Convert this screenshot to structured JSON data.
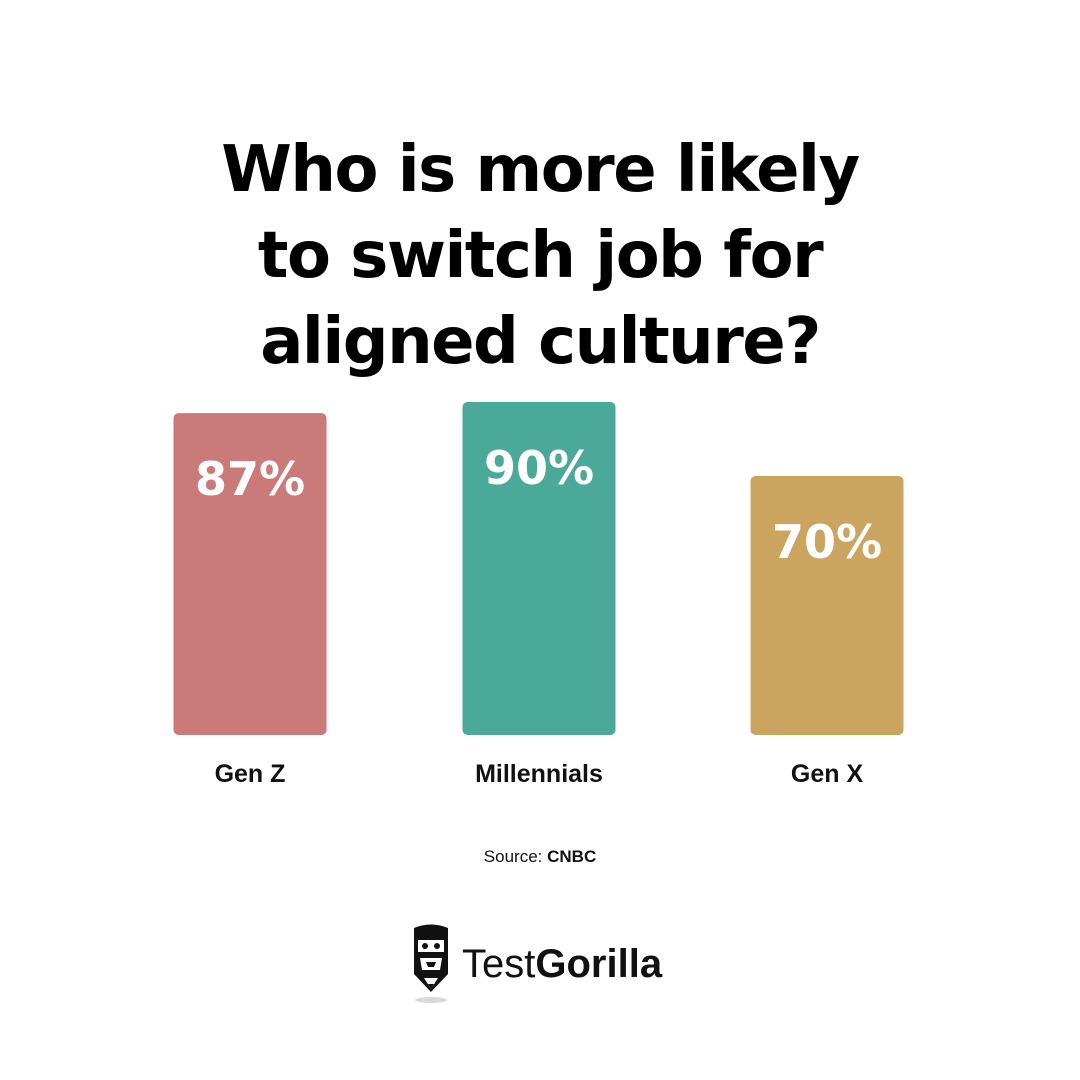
{
  "title": {
    "lines": [
      "Who is more likely",
      "to switch job for",
      "aligned culture?"
    ]
  },
  "chart_data": {
    "type": "bar",
    "title": "Who is more likely to switch job for aligned culture?",
    "categories": [
      "Gen Z",
      "Millennials",
      "Gen X"
    ],
    "values": [
      87,
      90,
      70
    ],
    "value_labels": [
      "87%",
      "90%",
      "70%"
    ],
    "colors": [
      "#cb7a7a",
      "#4aa999",
      "#cba45f"
    ],
    "unit": "%",
    "xlabel": "",
    "ylabel": "",
    "grid": false,
    "legend": "none"
  },
  "source": {
    "label": "Source:",
    "name": "CNBC"
  },
  "brand": {
    "icon": "gorilla-logo-icon",
    "name_regular": "Test",
    "name_bold": "Gorilla"
  }
}
